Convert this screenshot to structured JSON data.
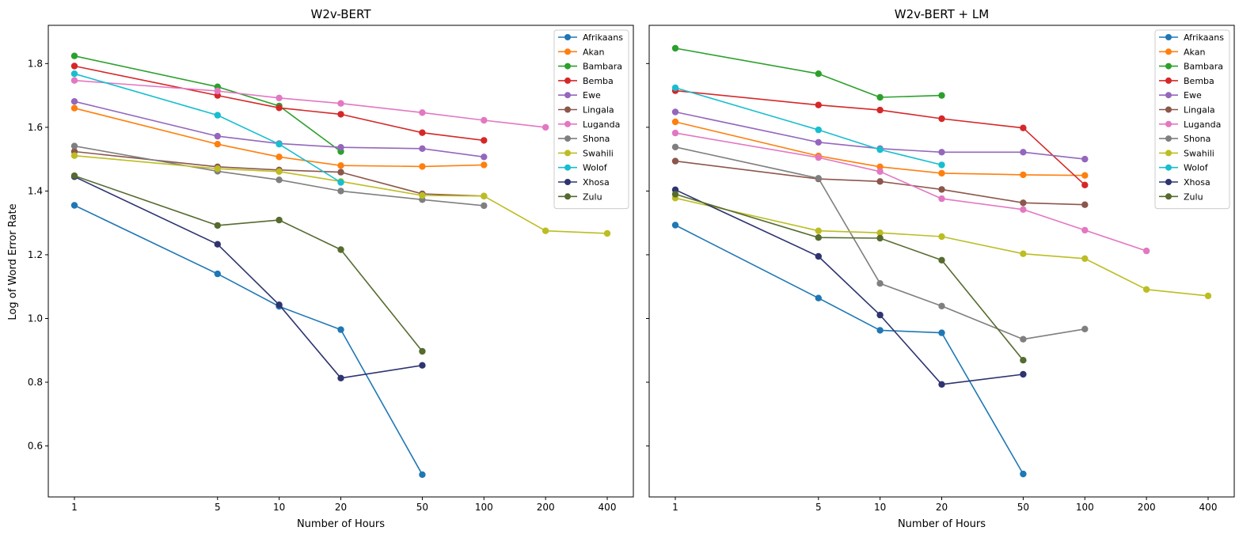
{
  "ylabel": "Log of Word Error Rate",
  "xlabel": "Number of Hours",
  "colors": {
    "Afrikaans": "#1f77b4",
    "Akan": "#ff7f0e",
    "Bambara": "#2ca02c",
    "Bemba": "#d62728",
    "Ewe": "#9467bd",
    "Lingala": "#8c564b",
    "Luganda": "#e377c2",
    "Shona": "#7f7f7f",
    "Swahili": "#bcbd22",
    "Wolof": "#17becf",
    "Xhosa": "#2e3470",
    "Zulu": "#556b2f"
  },
  "chart_data": [
    {
      "type": "line",
      "title": "W2v-BERT",
      "xlabel": "Number of Hours",
      "ylabel": "Log of Word Error Rate",
      "xscale": "log",
      "xticks": [
        1,
        5,
        10,
        20,
        50,
        100,
        200,
        400
      ],
      "yticks": [
        0.6,
        0.8,
        1.0,
        1.2,
        1.4,
        1.6,
        1.8
      ],
      "ylim": [
        0.44,
        1.92
      ],
      "legend": "top-right",
      "series": [
        {
          "name": "Afrikaans",
          "x": [
            1,
            5,
            10,
            20,
            50
          ],
          "values": [
            1.355,
            1.14,
            1.038,
            0.965,
            0.51
          ]
        },
        {
          "name": "Akan",
          "x": [
            1,
            5,
            10,
            20,
            50,
            100
          ],
          "values": [
            1.66,
            1.547,
            1.507,
            1.48,
            1.477,
            1.482
          ]
        },
        {
          "name": "Bambara",
          "x": [
            1,
            5,
            10,
            20
          ],
          "values": [
            1.824,
            1.727,
            1.667,
            1.524
          ]
        },
        {
          "name": "Bemba",
          "x": [
            1,
            5,
            10,
            20,
            50,
            100
          ],
          "values": [
            1.792,
            1.7,
            1.661,
            1.641,
            1.583,
            1.559
          ]
        },
        {
          "name": "Ewe",
          "x": [
            1,
            5,
            10,
            20,
            50,
            100
          ],
          "values": [
            1.681,
            1.572,
            1.549,
            1.537,
            1.533,
            1.507
          ]
        },
        {
          "name": "Lingala",
          "x": [
            1,
            5,
            10,
            20,
            50,
            100
          ],
          "values": [
            1.524,
            1.476,
            1.466,
            1.459,
            1.391,
            1.384
          ]
        },
        {
          "name": "Luganda",
          "x": [
            1,
            5,
            10,
            20,
            50,
            100,
            200
          ],
          "values": [
            1.747,
            1.714,
            1.692,
            1.675,
            1.646,
            1.622,
            1.6
          ]
        },
        {
          "name": "Shona",
          "x": [
            1,
            5,
            10,
            20,
            50,
            100
          ],
          "values": [
            1.541,
            1.462,
            1.435,
            1.4,
            1.373,
            1.354
          ]
        },
        {
          "name": "Swahili",
          "x": [
            1,
            5,
            10,
            20,
            50,
            100,
            200,
            400
          ],
          "values": [
            1.511,
            1.47,
            1.461,
            1.43,
            1.386,
            1.384,
            1.275,
            1.267
          ]
        },
        {
          "name": "Wolof",
          "x": [
            1,
            5,
            10,
            20
          ],
          "values": [
            1.768,
            1.638,
            1.547,
            1.427
          ]
        },
        {
          "name": "Xhosa",
          "x": [
            1,
            5,
            10,
            20,
            50
          ],
          "values": [
            1.445,
            1.233,
            1.043,
            0.813,
            0.853
          ]
        },
        {
          "name": "Zulu",
          "x": [
            1,
            5,
            10,
            20,
            50
          ],
          "values": [
            1.448,
            1.292,
            1.309,
            1.216,
            0.897
          ]
        }
      ]
    },
    {
      "type": "line",
      "title": "W2v-BERT + LM",
      "xlabel": "Number of Hours",
      "ylabel": "",
      "xscale": "log",
      "xticks": [
        1,
        5,
        10,
        20,
        50,
        100,
        200,
        400
      ],
      "yticks": [
        0.6,
        0.8,
        1.0,
        1.2,
        1.4,
        1.6,
        1.8
      ],
      "ylim": [
        0.44,
        1.92
      ],
      "legend": "top-right",
      "series": [
        {
          "name": "Afrikaans",
          "x": [
            1,
            5,
            10,
            20,
            50
          ],
          "values": [
            1.293,
            1.064,
            0.963,
            0.955,
            0.512
          ]
        },
        {
          "name": "Akan",
          "x": [
            1,
            5,
            10,
            20,
            50,
            100
          ],
          "values": [
            1.617,
            1.51,
            1.476,
            1.456,
            1.451,
            1.449
          ]
        },
        {
          "name": "Bambara",
          "x": [
            1,
            5,
            10,
            20
          ],
          "values": [
            1.848,
            1.768,
            1.694,
            1.7
          ]
        },
        {
          "name": "Bemba",
          "x": [
            1,
            5,
            10,
            20,
            50,
            100
          ],
          "values": [
            1.715,
            1.67,
            1.654,
            1.627,
            1.598,
            1.419
          ]
        },
        {
          "name": "Ewe",
          "x": [
            1,
            5,
            10,
            20,
            50,
            100
          ],
          "values": [
            1.648,
            1.553,
            1.533,
            1.522,
            1.522,
            1.5
          ]
        },
        {
          "name": "Lingala",
          "x": [
            1,
            5,
            10,
            20,
            50,
            100
          ],
          "values": [
            1.494,
            1.438,
            1.43,
            1.405,
            1.363,
            1.357
          ]
        },
        {
          "name": "Luganda",
          "x": [
            1,
            5,
            10,
            20,
            50,
            100,
            200
          ],
          "values": [
            1.582,
            1.505,
            1.461,
            1.376,
            1.342,
            1.277,
            1.212
          ]
        },
        {
          "name": "Shona",
          "x": [
            1,
            5,
            10,
            20,
            50,
            100
          ],
          "values": [
            1.538,
            1.44,
            1.11,
            1.039,
            0.935,
            0.967
          ]
        },
        {
          "name": "Swahili",
          "x": [
            1,
            5,
            10,
            20,
            50,
            100,
            200,
            400
          ],
          "values": [
            1.378,
            1.275,
            1.269,
            1.257,
            1.203,
            1.188,
            1.091,
            1.071
          ]
        },
        {
          "name": "Wolof",
          "x": [
            1,
            5,
            10,
            20
          ],
          "values": [
            1.724,
            1.592,
            1.53,
            1.482
          ]
        },
        {
          "name": "Xhosa",
          "x": [
            1,
            5,
            10,
            20,
            50
          ],
          "values": [
            1.404,
            1.195,
            1.011,
            0.793,
            0.825
          ]
        },
        {
          "name": "Zulu",
          "x": [
            1,
            5,
            10,
            20,
            50
          ],
          "values": [
            1.39,
            1.254,
            1.252,
            1.183,
            0.869
          ]
        }
      ]
    }
  ]
}
